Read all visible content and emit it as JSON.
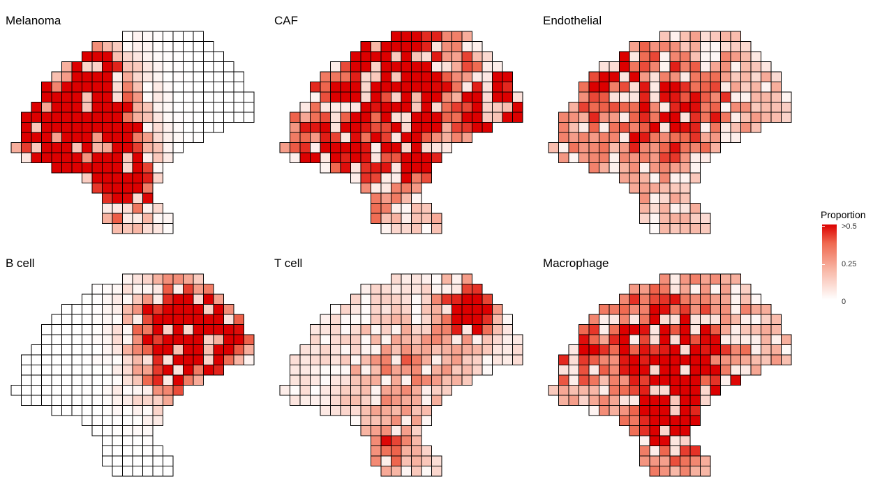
{
  "chart_data": {
    "type": "heatmap",
    "legend": {
      "title": "Proportion",
      "ticks": [
        ">0.5",
        "0.25",
        "0"
      ],
      "tick_values": [
        0.5,
        0.25,
        0
      ],
      "placement": "right",
      "colors": [
        "#ffffff",
        "#dc0000"
      ]
    },
    "tissue_rows": [
      {
        "row": 0,
        "cols": [
          11,
          18
        ]
      },
      {
        "row": 1,
        "cols": [
          8,
          19
        ]
      },
      {
        "row": 2,
        "cols": [
          7,
          20
        ]
      },
      {
        "row": 3,
        "cols": [
          5,
          21
        ]
      },
      {
        "row": 4,
        "cols": [
          4,
          22
        ]
      },
      {
        "row": 5,
        "cols": [
          3,
          22
        ]
      },
      {
        "row": 6,
        "cols": [
          3,
          23
        ]
      },
      {
        "row": 7,
        "cols": [
          2,
          23
        ]
      },
      {
        "row": 8,
        "cols": [
          1,
          23
        ]
      },
      {
        "row": 9,
        "cols": [
          1,
          20
        ]
      },
      {
        "row": 10,
        "cols": [
          1,
          18
        ]
      },
      {
        "row": 11,
        "cols": [
          0,
          16
        ]
      },
      {
        "row": 12,
        "cols": [
          1,
          15
        ]
      },
      {
        "row": 13,
        "cols": [
          4,
          14
        ]
      },
      {
        "row": 14,
        "cols": [
          7,
          14
        ]
      },
      {
        "row": 15,
        "cols": [
          8,
          13
        ]
      },
      {
        "row": 16,
        "cols": [
          9,
          13
        ]
      },
      {
        "row": 17,
        "cols": [
          9,
          14
        ]
      },
      {
        "row": 18,
        "cols": [
          9,
          15
        ]
      },
      {
        "row": 19,
        "cols": [
          10,
          15
        ]
      }
    ],
    "panels": [
      {
        "name": "Melanoma",
        "hotspots": [
          {
            "r": 4,
            "c": 4,
            "s": 3.2,
            "v": 1.0
          },
          {
            "r": 7,
            "c": 5,
            "s": 3.5,
            "v": 1.0
          },
          {
            "r": 10,
            "c": 6,
            "s": 2.8,
            "v": 1.0
          },
          {
            "r": 12,
            "c": 9,
            "s": 2.5,
            "v": 0.85
          },
          {
            "r": 16,
            "c": 11,
            "s": 2.0,
            "v": 0.55
          }
        ],
        "base": 0.0
      },
      {
        "name": "CAF",
        "hotspots": [
          {
            "r": 1,
            "c": 11,
            "s": 3.0,
            "v": 0.95
          },
          {
            "r": 7,
            "c": 13,
            "s": 1.6,
            "v": 0.75
          },
          {
            "r": 12,
            "c": 13,
            "s": 1.2,
            "v": 0.75
          },
          {
            "r": 7,
            "c": 21,
            "s": 2.2,
            "v": 0.85
          },
          {
            "r": 9,
            "c": 7,
            "s": 5.0,
            "v": 0.35
          }
        ],
        "base": 0.18
      },
      {
        "name": "Endothelial",
        "hotspots": [
          {
            "r": 3,
            "c": 6,
            "s": 2.0,
            "v": 0.45
          },
          {
            "r": 7,
            "c": 13,
            "s": 4.0,
            "v": 0.35
          },
          {
            "r": 9,
            "c": 5,
            "s": 5.0,
            "v": 0.2
          }
        ],
        "base": 0.12
      },
      {
        "name": "B cell",
        "hotspots": [
          {
            "r": 4,
            "c": 16,
            "s": 2.6,
            "v": 1.0
          },
          {
            "r": 6,
            "c": 20,
            "s": 2.0,
            "v": 0.9
          },
          {
            "r": 9,
            "c": 15,
            "s": 2.5,
            "v": 0.45
          }
        ],
        "base": 0.0
      },
      {
        "name": "T cell",
        "hotspots": [
          {
            "r": 3,
            "c": 18,
            "s": 1.8,
            "v": 0.8
          },
          {
            "r": 9,
            "c": 12,
            "s": 4.0,
            "v": 0.25
          },
          {
            "r": 17,
            "c": 10,
            "s": 2.0,
            "v": 0.35
          }
        ],
        "base": 0.06
      },
      {
        "name": "Macrophage",
        "hotspots": [
          {
            "r": 10,
            "c": 13,
            "s": 5.0,
            "v": 0.45
          },
          {
            "r": 7,
            "c": 1,
            "s": 2.0,
            "v": 0.6
          },
          {
            "r": 14,
            "c": 12,
            "s": 2.5,
            "v": 0.5
          },
          {
            "r": 4,
            "c": 10,
            "s": 4.0,
            "v": 0.25
          }
        ],
        "base": 0.12
      }
    ]
  }
}
